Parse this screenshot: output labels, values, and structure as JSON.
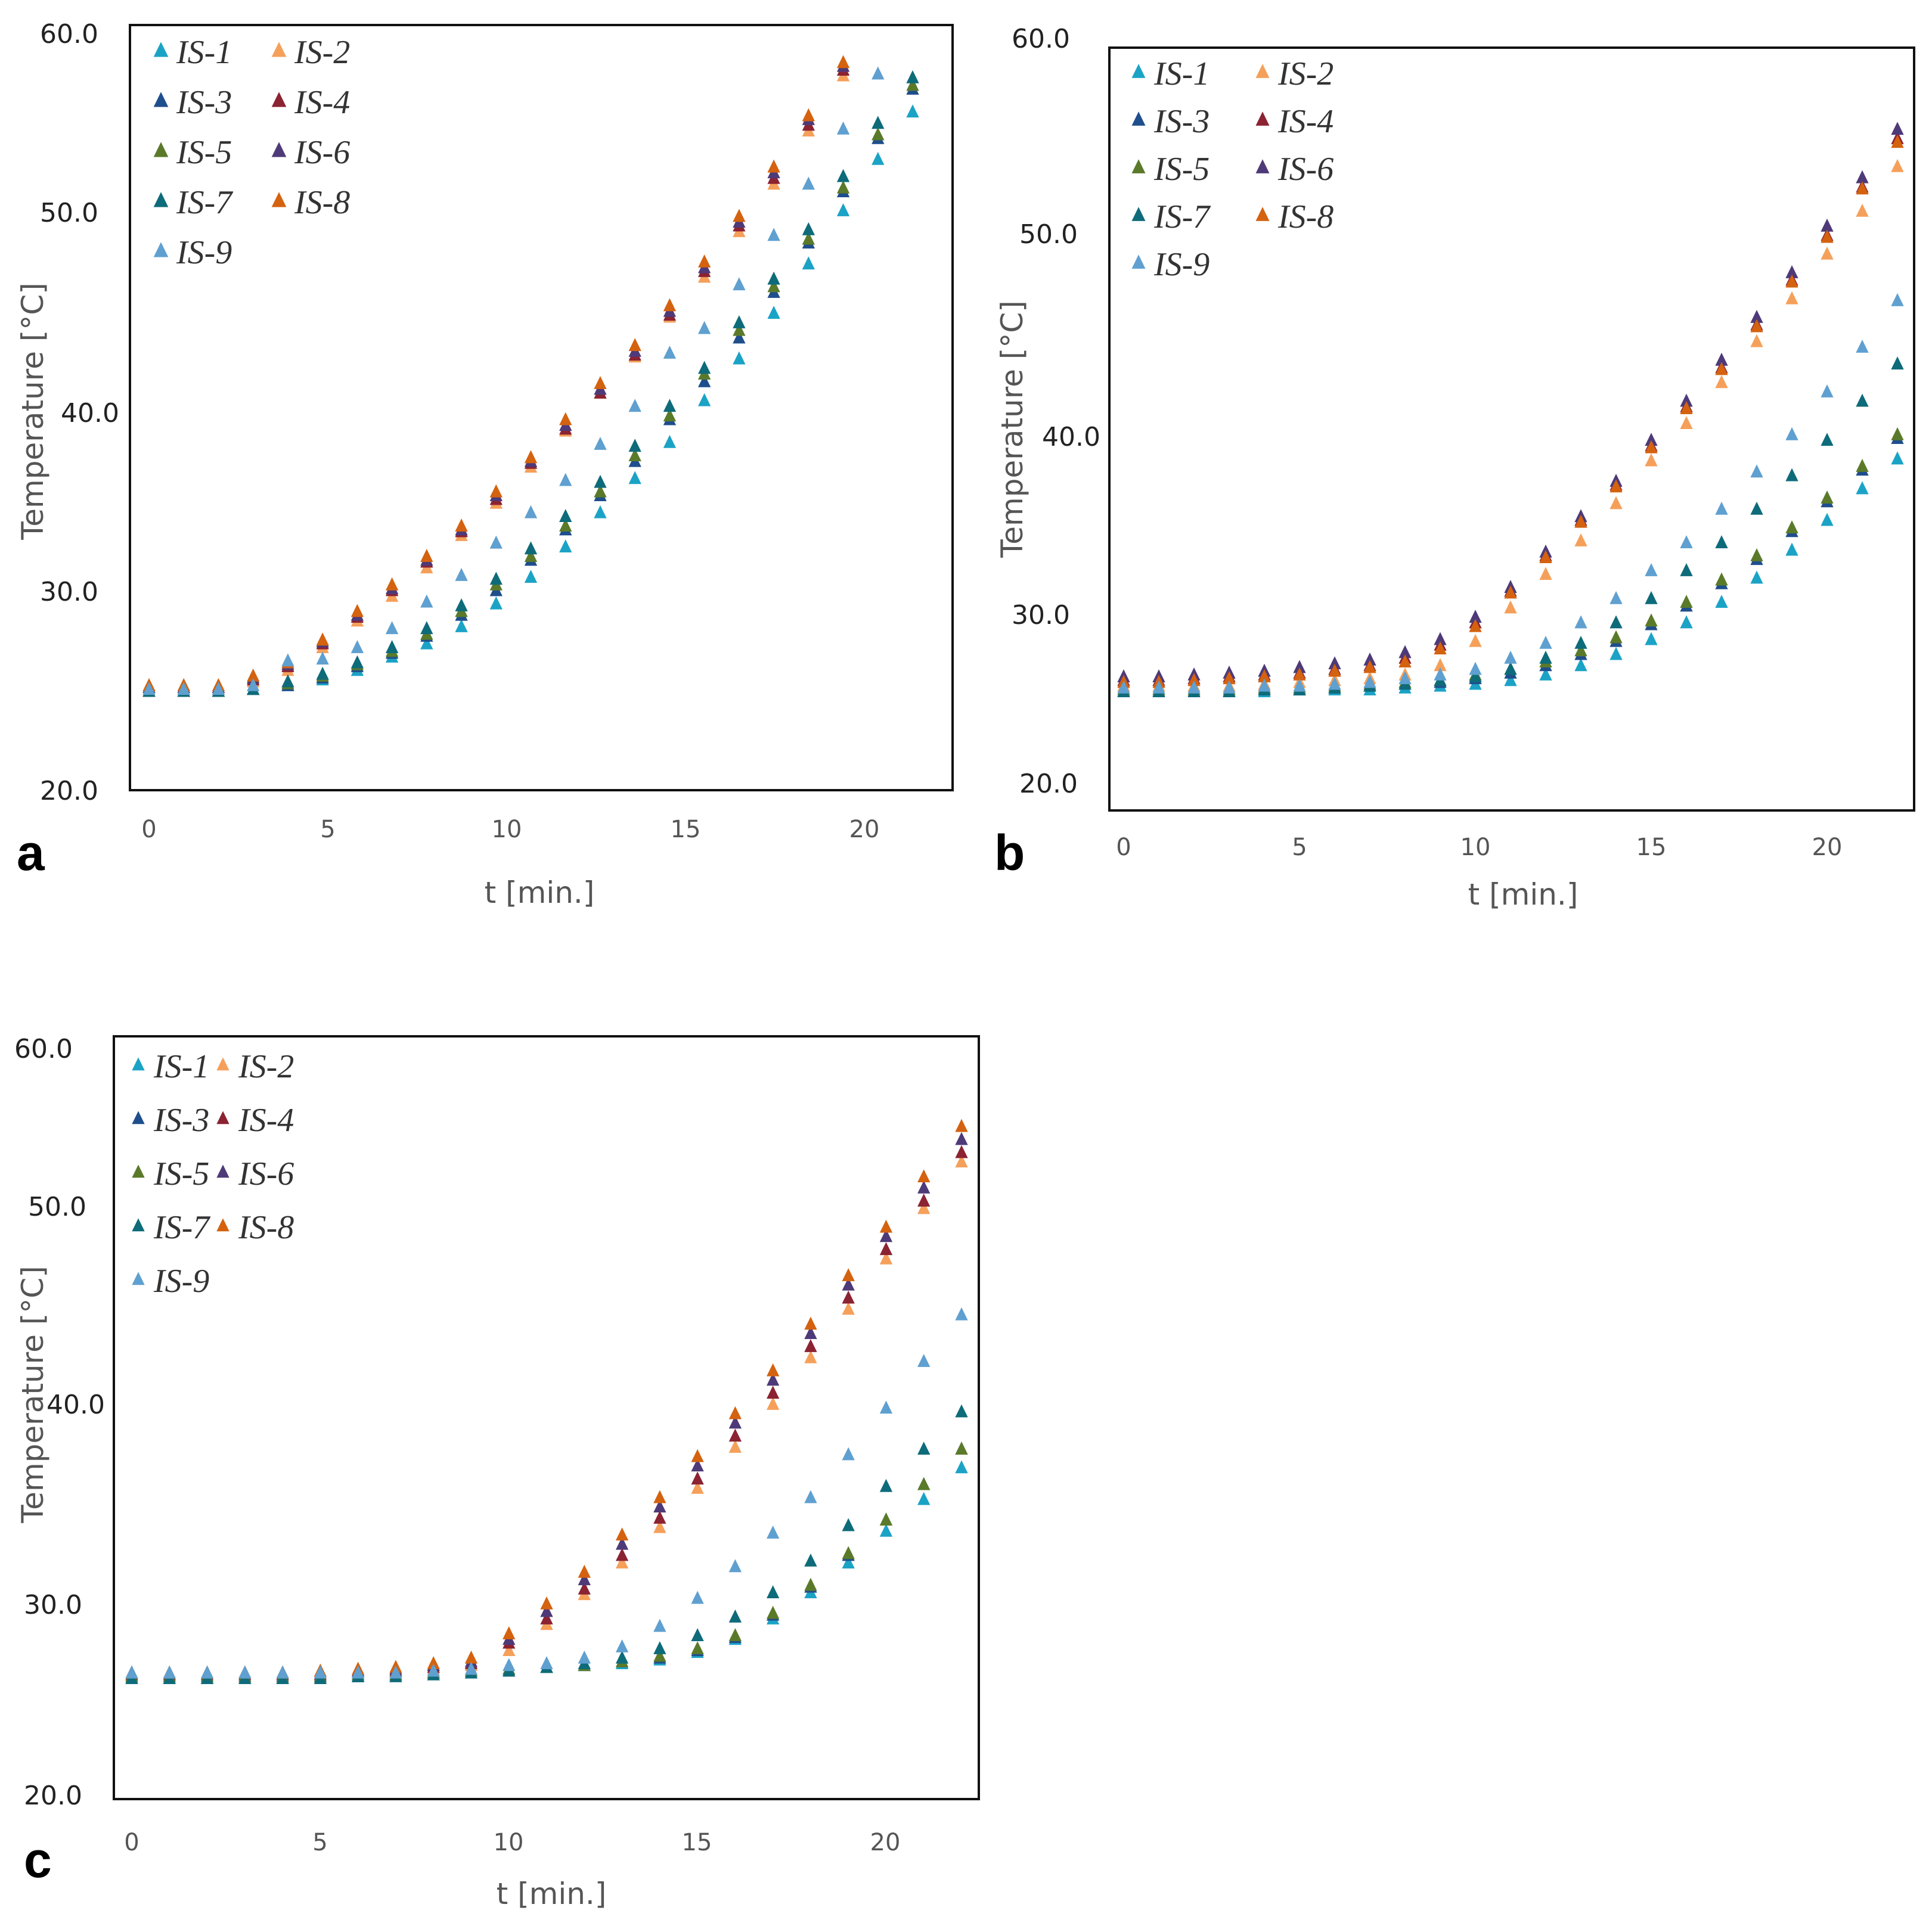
{
  "series_colors": {
    "IS-1": "#1ba3c6",
    "IS-2": "#f5a05a",
    "IS-3": "#1f4e8c",
    "IS-4": "#8b2332",
    "IS-5": "#5a7a2a",
    "IS-6": "#4e3a78",
    "IS-7": "#0e6b7a",
    "IS-8": "#d4620f",
    "IS-9": "#5fa0d0"
  },
  "chart_data": [
    {
      "panel_label": "a",
      "type": "scatter",
      "xlabel": "t [min.]",
      "ylabel": "Temperature [°C]",
      "ylim": [
        20,
        60
      ],
      "xlim": [
        0,
        22
      ],
      "yticks": [
        "20.0",
        "30.0",
        "40.0",
        "50.0",
        "60.0"
      ],
      "xticks": [
        "0",
        "5",
        "10",
        "15",
        "20"
      ],
      "x": [
        0,
        1,
        2,
        3,
        4,
        5,
        6,
        7,
        8,
        9,
        10,
        11,
        12,
        13,
        14,
        15,
        16,
        17,
        18,
        19,
        20,
        21,
        22
      ],
      "series": [
        {
          "name": "IS-1",
          "values": [
            25.3,
            25.3,
            25.3,
            25.4,
            25.6,
            25.9,
            26.4,
            27.1,
            27.8,
            28.7,
            29.9,
            31.3,
            32.9,
            34.7,
            36.5,
            38.4,
            40.6,
            42.8,
            45.2,
            47.8,
            50.6,
            53.3,
            55.8
          ]
        },
        {
          "name": "IS-2",
          "values": [
            25.4,
            25.4,
            25.4,
            25.8,
            26.4,
            27.6,
            29.0,
            30.3,
            31.8,
            33.5,
            35.2,
            37.1,
            39.0,
            41.0,
            42.9,
            45.0,
            47.1,
            49.5,
            52.0,
            54.8,
            57.7,
            null,
            null
          ]
        },
        {
          "name": "IS-3",
          "values": [
            25.3,
            25.3,
            25.3,
            25.4,
            25.6,
            26.0,
            26.6,
            27.3,
            28.2,
            29.3,
            30.6,
            32.2,
            33.8,
            35.6,
            37.4,
            39.6,
            41.6,
            43.9,
            46.3,
            48.9,
            51.6,
            54.4,
            57.0
          ]
        },
        {
          "name": "IS-4",
          "values": [
            25.5,
            25.5,
            25.5,
            25.9,
            26.6,
            27.8,
            29.2,
            30.6,
            32.1,
            33.7,
            35.4,
            37.3,
            39.1,
            41.0,
            43.0,
            45.1,
            47.4,
            49.8,
            52.3,
            55.1,
            58.0,
            null,
            null
          ]
        },
        {
          "name": "IS-5",
          "values": [
            25.3,
            25.3,
            25.3,
            25.4,
            25.7,
            26.1,
            26.7,
            27.4,
            28.3,
            29.5,
            30.9,
            32.4,
            34.0,
            35.8,
            37.7,
            39.8,
            42.0,
            44.3,
            46.6,
            49.1,
            51.8,
            54.6,
            57.2
          ]
        },
        {
          "name": "IS-6",
          "values": [
            25.5,
            25.5,
            25.5,
            26.0,
            26.7,
            27.9,
            29.3,
            30.7,
            32.2,
            33.8,
            35.6,
            37.4,
            39.3,
            41.2,
            43.2,
            45.3,
            47.6,
            50.0,
            52.6,
            55.4,
            58.2,
            null,
            null
          ]
        },
        {
          "name": "IS-7",
          "values": [
            25.3,
            25.3,
            25.3,
            25.4,
            25.8,
            26.2,
            26.8,
            27.6,
            28.6,
            29.8,
            31.2,
            32.8,
            34.5,
            36.3,
            38.2,
            40.3,
            42.3,
            44.7,
            47.0,
            49.6,
            52.4,
            55.2,
            57.6
          ]
        },
        {
          "name": "IS-8",
          "values": [
            25.6,
            25.6,
            25.6,
            26.1,
            26.8,
            28.0,
            29.5,
            30.9,
            32.4,
            34.0,
            35.8,
            37.6,
            39.6,
            41.5,
            43.5,
            45.6,
            47.9,
            50.3,
            52.9,
            55.6,
            58.4,
            null,
            null
          ]
        },
        {
          "name": "IS-9",
          "values": [
            25.4,
            25.4,
            25.4,
            25.6,
            26.9,
            27.0,
            27.6,
            28.6,
            30.0,
            31.4,
            33.1,
            34.7,
            36.4,
            38.3,
            40.3,
            43.1,
            44.4,
            46.7,
            49.3,
            52.0,
            54.9,
            57.8,
            null
          ]
        }
      ]
    },
    {
      "panel_label": "b",
      "type": "scatter",
      "xlabel": "t [min.]",
      "ylabel": "Temperature [°C]",
      "ylim": [
        20,
        60
      ],
      "xlim": [
        0,
        22
      ],
      "yticks": [
        "20.0",
        "30.0",
        "40.0",
        "50.0",
        "60.0"
      ],
      "xticks": [
        "0",
        "5",
        "10",
        "15",
        "20"
      ],
      "x": [
        0,
        1,
        2,
        3,
        4,
        5,
        6,
        7,
        8,
        9,
        10,
        11,
        12,
        13,
        14,
        15,
        16,
        17,
        18,
        19,
        20,
        21,
        22
      ],
      "series": [
        {
          "name": "IS-1",
          "values": [
            25.0,
            25.0,
            25.0,
            25.0,
            25.0,
            25.1,
            25.1,
            25.1,
            25.2,
            25.3,
            25.4,
            25.6,
            25.9,
            26.4,
            27.0,
            27.8,
            28.7,
            29.8,
            31.1,
            32.6,
            34.2,
            35.9,
            37.5
          ]
        },
        {
          "name": "IS-2",
          "values": [
            25.3,
            25.3,
            25.3,
            25.3,
            25.4,
            25.5,
            25.6,
            25.7,
            25.9,
            26.4,
            27.7,
            29.5,
            31.3,
            33.1,
            35.1,
            37.4,
            39.4,
            41.6,
            43.8,
            46.1,
            48.5,
            50.8,
            53.2
          ]
        },
        {
          "name": "IS-3",
          "values": [
            25.0,
            25.0,
            25.0,
            25.0,
            25.1,
            25.1,
            25.2,
            25.3,
            25.4,
            25.5,
            25.7,
            26.0,
            26.4,
            27.0,
            27.7,
            28.6,
            29.6,
            30.8,
            32.1,
            33.6,
            35.2,
            36.9,
            38.6
          ]
        },
        {
          "name": "IS-4",
          "values": [
            25.6,
            25.6,
            25.7,
            25.8,
            25.9,
            26.0,
            26.2,
            26.4,
            26.8,
            27.5,
            28.7,
            30.4,
            32.3,
            34.2,
            36.1,
            38.2,
            40.3,
            42.4,
            44.7,
            47.1,
            49.5,
            52.1,
            54.7
          ]
        },
        {
          "name": "IS-5",
          "values": [
            25.1,
            25.1,
            25.1,
            25.1,
            25.2,
            25.2,
            25.3,
            25.4,
            25.5,
            25.6,
            25.9,
            26.2,
            26.6,
            27.2,
            27.9,
            28.8,
            29.8,
            31.0,
            32.3,
            33.8,
            35.4,
            37.1,
            38.8
          ]
        },
        {
          "name": "IS-6",
          "values": [
            25.8,
            25.8,
            25.9,
            26.0,
            26.1,
            26.3,
            26.5,
            26.7,
            27.1,
            27.8,
            29.0,
            30.6,
            32.5,
            34.4,
            36.3,
            38.5,
            40.6,
            42.8,
            45.1,
            47.5,
            50.0,
            52.6,
            55.2
          ]
        },
        {
          "name": "IS-7",
          "values": [
            25.0,
            25.0,
            25.0,
            25.0,
            25.1,
            25.1,
            25.2,
            25.3,
            25.4,
            25.6,
            25.8,
            26.2,
            26.8,
            27.6,
            28.7,
            30.0,
            31.5,
            33.0,
            34.8,
            36.6,
            38.5,
            40.6,
            42.6
          ]
        },
        {
          "name": "IS-8",
          "values": [
            25.5,
            25.5,
            25.6,
            25.7,
            25.8,
            25.9,
            26.1,
            26.3,
            26.6,
            27.3,
            28.5,
            30.3,
            32.2,
            34.1,
            36.0,
            38.1,
            40.2,
            42.3,
            44.6,
            47.0,
            49.4,
            52.0,
            54.5
          ]
        },
        {
          "name": "IS-9",
          "values": [
            25.2,
            25.2,
            25.2,
            25.2,
            25.3,
            25.3,
            25.4,
            25.5,
            25.7,
            25.9,
            26.2,
            26.8,
            27.6,
            28.7,
            30.0,
            31.5,
            33.0,
            34.8,
            36.8,
            38.8,
            41.1,
            43.5,
            46.0
          ]
        }
      ]
    },
    {
      "panel_label": "c",
      "type": "scatter",
      "xlabel": "t [min.]",
      "ylabel": "Temperature [°C]",
      "ylim": [
        20,
        60
      ],
      "xlim": [
        0,
        22
      ],
      "yticks": [
        "20.0",
        "30.0",
        "40.0",
        "50.0",
        "60.0"
      ],
      "xticks": [
        "0",
        "5",
        "10",
        "15",
        "20"
      ],
      "x": [
        0,
        1,
        2,
        3,
        4,
        5,
        6,
        7,
        8,
        9,
        10,
        11,
        12,
        13,
        14,
        15,
        16,
        17,
        18,
        19,
        20,
        21,
        22
      ],
      "series": [
        {
          "name": "IS-1",
          "values": [
            26.4,
            26.4,
            26.4,
            26.4,
            26.4,
            26.4,
            26.5,
            26.5,
            26.6,
            26.7,
            26.8,
            26.9,
            27.0,
            27.1,
            27.3,
            27.7,
            28.4,
            29.5,
            30.9,
            32.5,
            34.2,
            35.9,
            37.6
          ]
        },
        {
          "name": "IS-2",
          "values": [
            26.5,
            26.5,
            26.5,
            26.5,
            26.5,
            26.5,
            26.6,
            26.6,
            26.8,
            27.0,
            27.8,
            29.2,
            30.8,
            32.5,
            34.4,
            36.5,
            38.7,
            41.0,
            43.5,
            46.1,
            48.8,
            51.5,
            54.0
          ]
        },
        {
          "name": "IS-3",
          "values": [
            26.3,
            26.3,
            26.3,
            26.3,
            26.3,
            26.4,
            26.4,
            26.5,
            26.6,
            26.7,
            26.8,
            26.9,
            27.0,
            27.2,
            27.4,
            27.8,
            28.5,
            29.7,
            31.2,
            32.9,
            34.8,
            36.7,
            38.6
          ]
        },
        {
          "name": "IS-4",
          "values": [
            26.5,
            26.5,
            26.5,
            26.5,
            26.5,
            26.5,
            26.6,
            26.7,
            26.9,
            27.1,
            28.2,
            29.5,
            31.1,
            32.9,
            34.9,
            37.0,
            39.3,
            41.6,
            44.1,
            46.7,
            49.3,
            51.9,
            54.5
          ]
        },
        {
          "name": "IS-5",
          "values": [
            26.4,
            26.4,
            26.4,
            26.4,
            26.4,
            26.4,
            26.5,
            26.5,
            26.6,
            26.7,
            26.8,
            26.9,
            27.0,
            27.2,
            27.5,
            27.9,
            28.6,
            29.8,
            31.3,
            33.0,
            34.8,
            36.7,
            38.6
          ]
        },
        {
          "name": "IS-6",
          "values": [
            26.6,
            26.6,
            26.6,
            26.6,
            26.6,
            26.6,
            26.7,
            26.8,
            27.0,
            27.2,
            28.4,
            29.9,
            31.6,
            33.5,
            35.5,
            37.7,
            40.0,
            42.3,
            44.8,
            47.4,
            50.0,
            52.6,
            55.2
          ]
        },
        {
          "name": "IS-7",
          "values": [
            26.3,
            26.3,
            26.3,
            26.3,
            26.3,
            26.3,
            26.4,
            26.4,
            26.5,
            26.6,
            26.7,
            26.9,
            27.1,
            27.4,
            27.9,
            28.6,
            29.6,
            30.9,
            32.6,
            34.5,
            36.6,
            38.6,
            40.6
          ]
        },
        {
          "name": "IS-8",
          "values": [
            26.6,
            26.6,
            26.6,
            26.6,
            26.6,
            26.7,
            26.8,
            26.9,
            27.1,
            27.4,
            28.7,
            30.3,
            32.0,
            34.0,
            36.0,
            38.2,
            40.5,
            42.8,
            45.3,
            47.9,
            50.5,
            53.2,
            55.9
          ]
        },
        {
          "name": "IS-9",
          "values": [
            26.6,
            26.6,
            26.6,
            26.6,
            26.6,
            26.6,
            26.6,
            26.6,
            26.7,
            26.8,
            27.0,
            27.1,
            27.4,
            28.0,
            29.1,
            30.6,
            32.3,
            34.1,
            36.0,
            38.3,
            40.8,
            43.3,
            45.8
          ]
        }
      ]
    }
  ]
}
